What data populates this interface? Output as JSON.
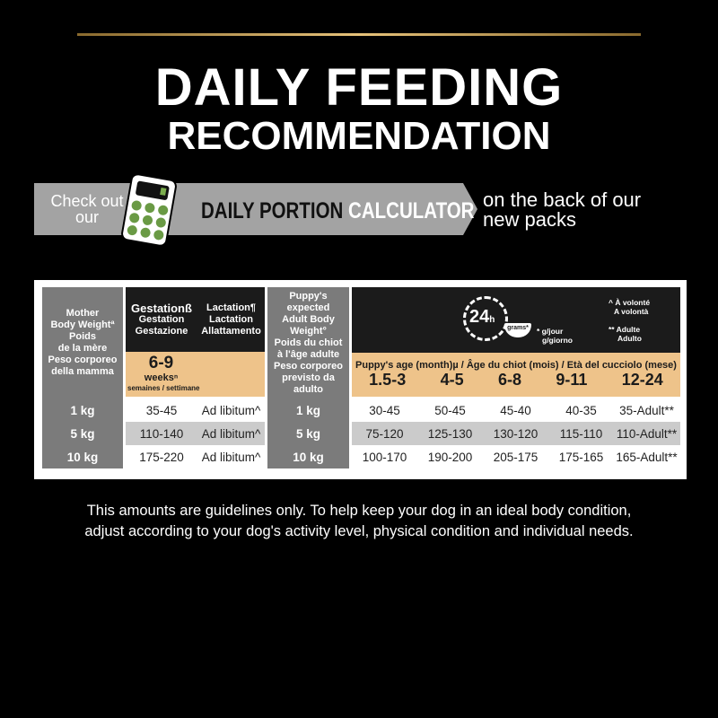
{
  "header": {
    "title_line1": "DAILY FEEDING",
    "title_line2": "RECOMMENDATION"
  },
  "banner": {
    "check": "Check out our",
    "daily_portion": "DAILY PORTION",
    "calculator": "CALCULATOR",
    "on_back": "on the back of our new packs",
    "icon": "calculator-icon"
  },
  "table": {
    "mother_header": [
      "Mother",
      "Body Weightª",
      "Poids",
      "de la mère",
      "Peso corporeo",
      "della mamma"
    ],
    "gestation_header": [
      "Gestationß",
      "Gestation",
      "Gestazione"
    ],
    "lactation_header": [
      "Lactation¶",
      "Lactation",
      "Allattamento"
    ],
    "weeks": {
      "value": "6-9",
      "unit": "weeksⁿ",
      "unit_fr_it": "semaines / settimane"
    },
    "puppy_weight_header": [
      "Puppy's expected",
      "Adult Body Weight°",
      "Poids du chiot",
      "à l'âge adulte",
      "Peso corporeo",
      "previsto da adulto"
    ],
    "clock": {
      "label": "24",
      "unit": "h",
      "grams": "grams*",
      "icon": "clock-bowl-icon"
    },
    "notes": {
      "gjour": "* g/jour",
      "ggiorno": "g/giorno",
      "avolonte": "^ À volonté",
      "avolonta": "A volontà",
      "adulte": "** Adulte",
      "adulto": "Adulto"
    },
    "age_header": "Puppy's age (month)µ  /  Âge du chiot (mois)  /  Età del cucciolo (mese)",
    "ages": [
      "1.5-3",
      "4-5",
      "6-8",
      "9-11",
      "12-24"
    ],
    "rows": [
      {
        "mother": "1 kg",
        "gestation": "35-45",
        "lactation": "Ad libitum^",
        "puppy": "1 kg",
        "values": [
          "30-45",
          "50-45",
          "45-40",
          "40-35",
          "35-Adult**"
        ]
      },
      {
        "mother": "5 kg",
        "gestation": "110-140",
        "lactation": "Ad libitum^",
        "puppy": "5 kg",
        "values": [
          "75-120",
          "125-130",
          "130-120",
          "115-110",
          "110-Adult**"
        ]
      },
      {
        "mother": "10 kg",
        "gestation": "175-220",
        "lactation": "Ad libitum^",
        "puppy": "10 kg",
        "values": [
          "100-170",
          "190-200",
          "205-175",
          "175-165",
          "165-Adult**"
        ]
      }
    ]
  },
  "footer": {
    "line1": "This amounts are guidelines only. To help keep your dog in an ideal body condition,",
    "line2": "adjust according to your dog's activity level, physical condition and individual needs."
  }
}
